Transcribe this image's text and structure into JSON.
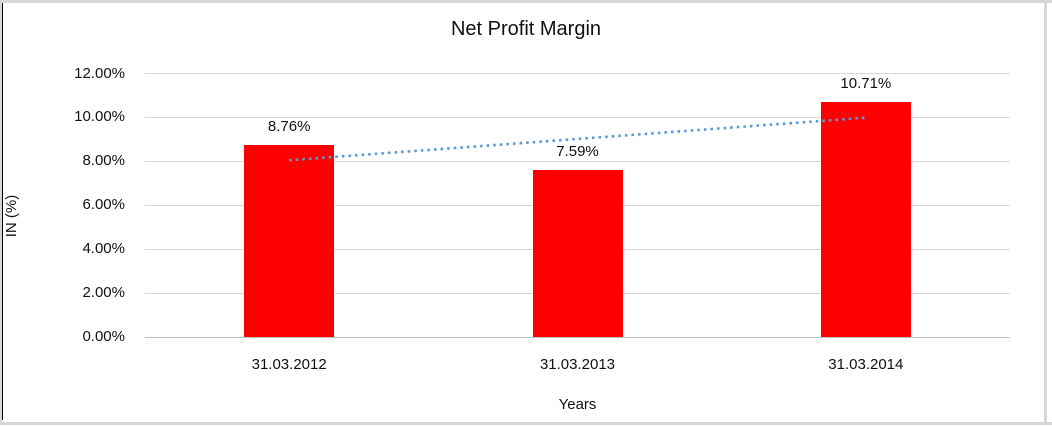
{
  "chart_data": {
    "type": "bar",
    "title": "Net Profit Margin",
    "xlabel": "Years",
    "ylabel": "IN (%)",
    "categories": [
      "31.03.2012",
      "31.03.2013",
      "31.03.2014"
    ],
    "values": [
      8.76,
      7.59,
      10.71
    ],
    "value_labels": [
      "8.76%",
      "7.59%",
      "10.71%"
    ],
    "y_ticks": [
      {
        "label": "12.00%",
        "value": 12
      },
      {
        "label": "10.00%",
        "value": 10
      },
      {
        "label": "8.00%",
        "value": 8
      },
      {
        "label": "6.00%",
        "value": 6
      },
      {
        "label": "4.00%",
        "value": 4
      },
      {
        "label": "2.00%",
        "value": 2
      },
      {
        "label": "0.00%",
        "value": 0
      }
    ],
    "ylim": [
      0,
      12
    ],
    "grid": "horizontal",
    "legend": "none",
    "bar_color": "#ff0000",
    "trendline": {
      "style": "dotted",
      "color": "#5b9bd5",
      "start_value": 8.05,
      "end_value": 9.99
    }
  }
}
